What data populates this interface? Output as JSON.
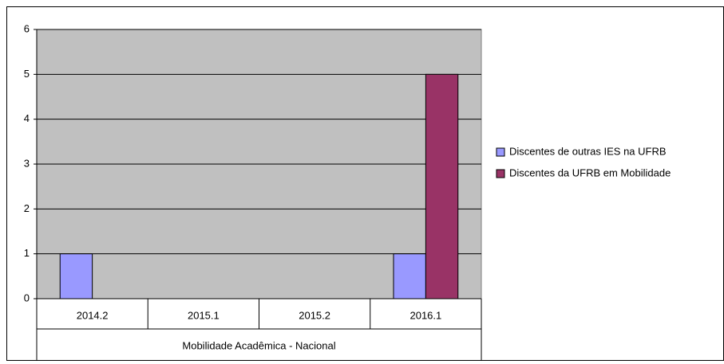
{
  "chart_data": {
    "type": "bar",
    "categories": [
      "2014.2",
      "2015.1",
      "2015.2",
      "2016.1"
    ],
    "category_group": "Mobilidade Acadêmica - Nacional",
    "series": [
      {
        "name": "Discentes de outras IES na UFRB",
        "color": "#9999ff",
        "values": [
          1,
          0,
          0,
          1
        ]
      },
      {
        "name": "Discentes da UFRB em Mobilidade",
        "color": "#993366",
        "values": [
          0,
          0,
          0,
          5
        ]
      }
    ],
    "ylim": [
      0,
      6
    ],
    "yticks": [
      0,
      1,
      2,
      3,
      4,
      5,
      6
    ],
    "grid": true,
    "plot_background": "#c0c0c0",
    "legend": "right"
  }
}
